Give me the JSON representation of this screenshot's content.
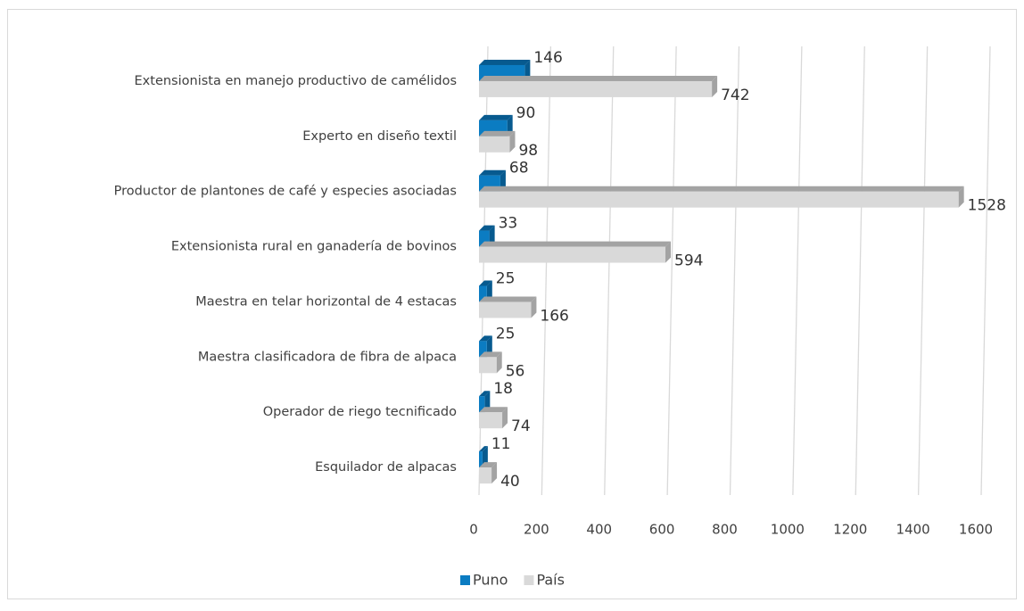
{
  "chart_data": {
    "type": "hbar3d",
    "categories": [
      "Extensionista en manejo productivo de camélidos",
      "Experto en diseño textil",
      "Productor de plantones de café y especies asociadas",
      "Extensionista rural en ganadería de bovinos",
      "Maestra en telar horizontal de 4 estacas",
      "Maestra clasificadora de fibra de alpaca",
      "Operador de riego tecnificado",
      "Esquilador de alpacas"
    ],
    "series": [
      {
        "name": "Puno",
        "color": "#0b7cc2",
        "side_color": "#075a8f",
        "values": [
          146,
          90,
          68,
          33,
          25,
          25,
          18,
          11
        ]
      },
      {
        "name": "País",
        "color": "#d9d9d9",
        "side_color": "#a3a3a3",
        "values": [
          742,
          98,
          1528,
          594,
          166,
          56,
          74,
          40
        ]
      }
    ],
    "xlim": [
      0,
      1600
    ],
    "xticks": [
      0,
      200,
      400,
      600,
      800,
      1000,
      1200,
      1400,
      1600
    ],
    "grid": true,
    "legend": "bottom"
  }
}
